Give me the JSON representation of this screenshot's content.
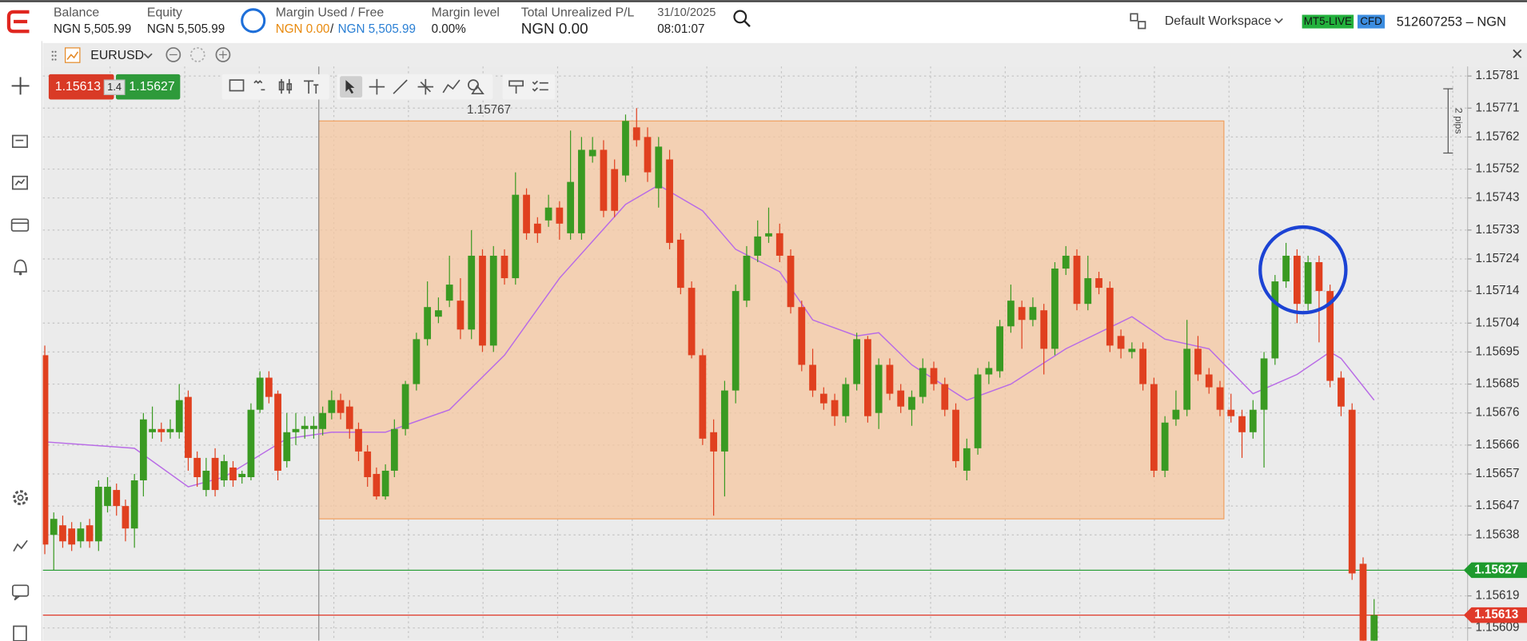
{
  "header": {
    "balance_label": "Balance",
    "balance": "NGN 5,505.99",
    "equity_label": "Equity",
    "equity": "NGN 5,505.99",
    "margin_label": "Margin Used / Free",
    "margin_used": "NGN 0.00",
    "margin_separator": "/",
    "margin_free": "NGN 5,505.99",
    "margin_level_label": "Margin level",
    "margin_level": "0.00%",
    "pl_label": "Total Unrealized P/L",
    "pl": "NGN 0.00",
    "date": "31/10/2025",
    "time": "08:01:07",
    "workspace": "Default Workspace",
    "server": "MT5-LIVE",
    "account_type": "CFD",
    "account": "512607253 – NGN"
  },
  "symbol_bar": {
    "symbol": "EURUSD"
  },
  "quote": {
    "bid": "1.15613",
    "spread": "1.4",
    "ask": "1.15627"
  },
  "chart_data": {
    "type": "candlestick",
    "up_color": "#3a9a22",
    "down_color": "#e0401f",
    "ylim": [
      1.15605,
      1.15784
    ],
    "yticks": [
      1.15781,
      1.15771,
      1.15762,
      1.15752,
      1.15743,
      1.15733,
      1.15724,
      1.15714,
      1.15704,
      1.15695,
      1.15685,
      1.15676,
      1.15666,
      1.15657,
      1.15647,
      1.15638,
      1.15619,
      1.15609
    ],
    "grid": true,
    "candles": [
      [
        1.15694,
        1.15697,
        1.15632,
        1.15635
      ],
      [
        1.15638,
        1.15645,
        1.15627,
        1.15643
      ],
      [
        1.15641,
        1.15644,
        1.15634,
        1.15636
      ],
      [
        1.1564,
        1.15642,
        1.15633,
        1.15635
      ],
      [
        1.15636,
        1.15642,
        1.15634,
        1.1564
      ],
      [
        1.15641,
        1.15643,
        1.15634,
        1.15636
      ],
      [
        1.15636,
        1.15655,
        1.15633,
        1.15653
      ],
      [
        1.15647,
        1.15656,
        1.15645,
        1.15653
      ],
      [
        1.15652,
        1.15654,
        1.15644,
        1.15647
      ],
      [
        1.15647,
        1.15649,
        1.15636,
        1.1564
      ],
      [
        1.1564,
        1.15657,
        1.15634,
        1.15655
      ],
      [
        1.15655,
        1.15676,
        1.1565,
        1.15674
      ],
      [
        1.1567,
        1.15678,
        1.15668,
        1.15671
      ],
      [
        1.15671,
        1.15673,
        1.15667,
        1.1567
      ],
      [
        1.1567,
        1.15674,
        1.15668,
        1.15671
      ],
      [
        1.1567,
        1.15685,
        1.15668,
        1.1568
      ],
      [
        1.15681,
        1.15683,
        1.15658,
        1.15662
      ],
      [
        1.15662,
        1.15664,
        1.15653,
        1.15656
      ],
      [
        1.15652,
        1.15662,
        1.1565,
        1.15658
      ],
      [
        1.15662,
        1.15665,
        1.1565,
        1.15652
      ],
      [
        1.15655,
        1.15663,
        1.15653,
        1.15661
      ],
      [
        1.15659,
        1.15661,
        1.15653,
        1.15655
      ],
      [
        1.15656,
        1.15658,
        1.15654,
        1.15657
      ],
      [
        1.15656,
        1.15679,
        1.15655,
        1.15677
      ],
      [
        1.15677,
        1.15689,
        1.15676,
        1.15687
      ],
      [
        1.15687,
        1.15689,
        1.15679,
        1.15681
      ],
      [
        1.15682,
        1.15683,
        1.15655,
        1.15658
      ],
      [
        1.15661,
        1.15676,
        1.15659,
        1.1567
      ],
      [
        1.1567,
        1.15676,
        1.15666,
        1.15671
      ],
      [
        1.15671,
        1.15675,
        1.15668,
        1.15672
      ],
      [
        1.15671,
        1.15675,
        1.15668,
        1.15672
      ],
      [
        1.15671,
        1.15678,
        1.15669,
        1.15676
      ],
      [
        1.15676,
        1.15683,
        1.15674,
        1.1568
      ],
      [
        1.1568,
        1.15682,
        1.15674,
        1.15676
      ],
      [
        1.15678,
        1.1568,
        1.15668,
        1.15671
      ],
      [
        1.15671,
        1.15673,
        1.15661,
        1.15664
      ],
      [
        1.15664,
        1.15666,
        1.15653,
        1.15656
      ],
      [
        1.15657,
        1.15659,
        1.15649,
        1.1565
      ],
      [
        1.1565,
        1.1566,
        1.15649,
        1.15658
      ],
      [
        1.15658,
        1.15674,
        1.15656,
        1.15671
      ],
      [
        1.15671,
        1.15686,
        1.15669,
        1.15685
      ],
      [
        1.15685,
        1.15701,
        1.15683,
        1.15699
      ],
      [
        1.15699,
        1.15717,
        1.15697,
        1.15709
      ],
      [
        1.15706,
        1.15712,
        1.15704,
        1.15708
      ],
      [
        1.15711,
        1.15725,
        1.15709,
        1.15716
      ],
      [
        1.15711,
        1.15718,
        1.15699,
        1.15702
      ],
      [
        1.15702,
        1.15733,
        1.15699,
        1.15725
      ],
      [
        1.15725,
        1.15727,
        1.15695,
        1.15697
      ],
      [
        1.15697,
        1.15728,
        1.15695,
        1.15725
      ],
      [
        1.15725,
        1.15727,
        1.15716,
        1.15718
      ],
      [
        1.15718,
        1.15751,
        1.15716,
        1.15744
      ],
      [
        1.15744,
        1.15746,
        1.1573,
        1.15732
      ],
      [
        1.15735,
        1.15737,
        1.15729,
        1.15732
      ],
      [
        1.15736,
        1.15744,
        1.15734,
        1.1574
      ],
      [
        1.1574,
        1.15742,
        1.1573,
        1.15735
      ],
      [
        1.15732,
        1.15764,
        1.1573,
        1.15748
      ],
      [
        1.15732,
        1.15762,
        1.1573,
        1.15758
      ],
      [
        1.15756,
        1.15762,
        1.15754,
        1.15758
      ],
      [
        1.15758,
        1.15761,
        1.15737,
        1.15739
      ],
      [
        1.15752,
        1.15755,
        1.15737,
        1.15739
      ],
      [
        1.1575,
        1.15769,
        1.15748,
        1.15767
      ],
      [
        1.15765,
        1.15771,
        1.15759,
        1.15761
      ],
      [
        1.15762,
        1.15765,
        1.15748,
        1.15751
      ],
      [
        1.15746,
        1.15762,
        1.1574,
        1.15759
      ],
      [
        1.15755,
        1.15758,
        1.15727,
        1.15729
      ],
      [
        1.1573,
        1.15732,
        1.15713,
        1.15715
      ],
      [
        1.15715,
        1.15717,
        1.15693,
        1.15694
      ],
      [
        1.15694,
        1.15696,
        1.15666,
        1.15668
      ],
      [
        1.1567,
        1.15674,
        1.15644,
        1.15664
      ],
      [
        1.15664,
        1.15686,
        1.1565,
        1.15683
      ],
      [
        1.15683,
        1.15716,
        1.15679,
        1.15714
      ],
      [
        1.15711,
        1.15728,
        1.15709,
        1.15725
      ],
      [
        1.15725,
        1.15736,
        1.15723,
        1.15731
      ],
      [
        1.15731,
        1.1574,
        1.15729,
        1.15732
      ],
      [
        1.15732,
        1.15735,
        1.15723,
        1.15725
      ],
      [
        1.15725,
        1.15727,
        1.15707,
        1.15709
      ],
      [
        1.15709,
        1.15711,
        1.15689,
        1.15691
      ],
      [
        1.15691,
        1.15696,
        1.15681,
        1.15683
      ],
      [
        1.15682,
        1.15684,
        1.15677,
        1.15679
      ],
      [
        1.1568,
        1.15682,
        1.15672,
        1.15675
      ],
      [
        1.15675,
        1.15687,
        1.15673,
        1.15685
      ],
      [
        1.15685,
        1.15701,
        1.15683,
        1.15699
      ],
      [
        1.15699,
        1.157,
        1.15673,
        1.15675
      ],
      [
        1.15676,
        1.15693,
        1.15671,
        1.15691
      ],
      [
        1.15691,
        1.15693,
        1.1568,
        1.15682
      ],
      [
        1.15683,
        1.15685,
        1.15676,
        1.15678
      ],
      [
        1.15677,
        1.15683,
        1.15672,
        1.15681
      ],
      [
        1.15681,
        1.15693,
        1.15679,
        1.1569
      ],
      [
        1.1569,
        1.15692,
        1.15683,
        1.15685
      ],
      [
        1.15685,
        1.15687,
        1.15675,
        1.15677
      ],
      [
        1.15677,
        1.15679,
        1.15659,
        1.15661
      ],
      [
        1.15658,
        1.15668,
        1.15655,
        1.15665
      ],
      [
        1.15665,
        1.1569,
        1.15663,
        1.15688
      ],
      [
        1.15688,
        1.15692,
        1.15685,
        1.1569
      ],
      [
        1.15689,
        1.15705,
        1.15687,
        1.15703
      ],
      [
        1.15703,
        1.15716,
        1.15701,
        1.15711
      ],
      [
        1.15709,
        1.15711,
        1.15696,
        1.15705
      ],
      [
        1.15705,
        1.15712,
        1.15703,
        1.15709
      ],
      [
        1.15708,
        1.1571,
        1.15688,
        1.15696
      ],
      [
        1.15696,
        1.15723,
        1.15694,
        1.15721
      ],
      [
        1.15721,
        1.15728,
        1.15719,
        1.15725
      ],
      [
        1.15725,
        1.15727,
        1.15708,
        1.1571
      ],
      [
        1.1571,
        1.15725,
        1.15708,
        1.15718
      ],
      [
        1.15718,
        1.1572,
        1.15713,
        1.15715
      ],
      [
        1.15715,
        1.15717,
        1.15695,
        1.15697
      ],
      [
        1.157,
        1.15702,
        1.15693,
        1.15696
      ],
      [
        1.15695,
        1.15698,
        1.15693,
        1.15696
      ],
      [
        1.15696,
        1.15698,
        1.15683,
        1.15685
      ],
      [
        1.15685,
        1.15687,
        1.15656,
        1.15658
      ],
      [
        1.15658,
        1.15675,
        1.15656,
        1.15673
      ],
      [
        1.15674,
        1.15683,
        1.15672,
        1.15677
      ],
      [
        1.15677,
        1.15705,
        1.15675,
        1.15696
      ],
      [
        1.15696,
        1.157,
        1.15686,
        1.15688
      ],
      [
        1.15688,
        1.1569,
        1.15682,
        1.15684
      ],
      [
        1.15684,
        1.15686,
        1.15675,
        1.15677
      ],
      [
        1.15677,
        1.15682,
        1.15673,
        1.15675
      ],
      [
        1.15675,
        1.15677,
        1.15662,
        1.1567
      ],
      [
        1.1567,
        1.1568,
        1.15668,
        1.15677
      ],
      [
        1.15677,
        1.15695,
        1.15659,
        1.15693
      ],
      [
        1.15693,
        1.15719,
        1.15691,
        1.15717
      ],
      [
        1.15717,
        1.15729,
        1.15715,
        1.15725
      ],
      [
        1.15725,
        1.15727,
        1.15704,
        1.1571
      ],
      [
        1.1571,
        1.15725,
        1.15708,
        1.15723
      ],
      [
        1.15723,
        1.15725,
        1.15698,
        1.15714
      ],
      [
        1.15714,
        1.15716,
        1.15684,
        1.15686
      ],
      [
        1.15687,
        1.15689,
        1.15675,
        1.15678
      ],
      [
        1.15677,
        1.15679,
        1.15624,
        1.15626
      ],
      [
        1.15629,
        1.15631,
        1.15603,
        1.15605
      ],
      [
        1.15605,
        1.15618,
        1.15603,
        1.15613
      ]
    ],
    "moving_average": {
      "color": "#b86be6",
      "x": [
        0,
        10,
        16,
        20,
        27,
        32,
        38,
        44,
        49,
        54,
        60,
        63,
        67,
        70,
        74,
        77,
        81,
        83,
        86,
        91,
        95,
        100,
        106,
        109,
        113,
        117,
        121,
        124,
        125,
        128
      ],
      "values": [
        1.15667,
        1.15665,
        1.15653,
        1.15656,
        1.15668,
        1.1567,
        1.1567,
        1.15677,
        1.15694,
        1.15718,
        1.15741,
        1.15747,
        1.15739,
        1.15727,
        1.1572,
        1.15705,
        1.157,
        1.15701,
        1.15691,
        1.1568,
        1.15685,
        1.15696,
        1.15706,
        1.15699,
        1.15696,
        1.15682,
        1.15688,
        1.15695,
        1.15693,
        1.1568
      ]
    },
    "rectangle": {
      "top": 1.15767,
      "bottom": 1.15643,
      "from": 31,
      "to": 114,
      "color": "#f6c7a0"
    },
    "price_lines": [
      {
        "value": 1.15627,
        "color": "#1f9a2e"
      },
      {
        "value": 1.15613,
        "color": "#e03a2a"
      }
    ],
    "scale_annotation": "2 pips"
  }
}
